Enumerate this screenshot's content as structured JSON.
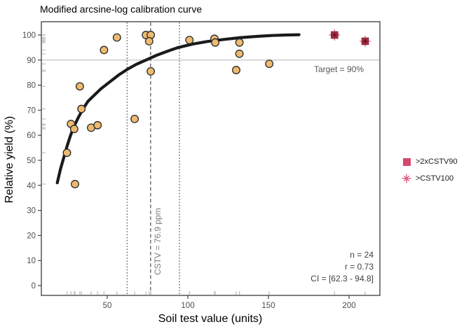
{
  "chart_data": {
    "type": "scatter",
    "title": "Modified arcsine-log calibration curve",
    "xlabel": "Soil test value (units)",
    "ylabel": "Relative yield (%)",
    "xlim": [
      9,
      219
    ],
    "ylim": [
      -4,
      105.3
    ],
    "x_ticks": [
      50,
      100,
      150,
      200
    ],
    "y_ticks": [
      0,
      10,
      20,
      30,
      40,
      50,
      60,
      70,
      80,
      90,
      100
    ],
    "grid": false,
    "legend_position": "right-outside",
    "series": [
      {
        "name": "soil-test-observations",
        "marker": "circle",
        "fill": "#EDBA6F",
        "stroke": "#2a2a2a",
        "points": [
          [
            25,
            53
          ],
          [
            27.5,
            64.5
          ],
          [
            29.5,
            62.5
          ],
          [
            30,
            40.5
          ],
          [
            33,
            79.5
          ],
          [
            34,
            70.5
          ],
          [
            40,
            63
          ],
          [
            44,
            64
          ],
          [
            48,
            94
          ],
          [
            56,
            99
          ],
          [
            67,
            66.5
          ],
          [
            74,
            100
          ],
          [
            77,
            100
          ],
          [
            76,
            97.5
          ],
          [
            77,
            85.5
          ],
          [
            101,
            98
          ],
          [
            116.5,
            98.5
          ],
          [
            117,
            97
          ],
          [
            132,
            97
          ],
          [
            132,
            92.5
          ],
          [
            130,
            86
          ],
          [
            150.5,
            88.5
          ]
        ]
      },
      {
        "name": "flagged-observations",
        "marker": "square-asterisk",
        "fill": "#C4374E",
        "stroke": "#7E1F33",
        "spoke_color": "#E8708E",
        "inner_color": "#6E1527",
        "points": [
          [
            191,
            100
          ],
          [
            210,
            97.5
          ]
        ]
      }
    ],
    "curve": {
      "name": "calibration-curve",
      "color": "#1a1a1a",
      "width": 4.2,
      "points": [
        [
          19,
          41
        ],
        [
          21,
          46.5
        ],
        [
          23,
          51
        ],
        [
          25,
          55.5
        ],
        [
          27,
          59.5
        ],
        [
          29,
          63
        ],
        [
          32,
          67
        ],
        [
          35,
          70.5
        ],
        [
          38,
          73.5
        ],
        [
          42,
          76
        ],
        [
          46,
          78.5
        ],
        [
          51,
          81
        ],
        [
          57,
          84
        ],
        [
          63,
          86.5
        ],
        [
          68,
          88.3
        ],
        [
          74,
          90
        ],
        [
          81,
          92
        ],
        [
          88,
          93.7
        ],
        [
          94,
          95
        ],
        [
          103,
          96.4
        ],
        [
          112,
          97.4
        ],
        [
          122,
          98.2
        ],
        [
          132,
          98.9
        ],
        [
          142,
          99.4
        ],
        [
          152,
          99.8
        ],
        [
          161,
          100
        ],
        [
          169,
          100.1
        ]
      ]
    },
    "reference_lines": {
      "target": {
        "y": 90,
        "label": "Target = 90%",
        "style": "solid",
        "color": "#bdbdbd"
      },
      "cstv": {
        "x": 76.9,
        "label": "CSTV = 76.9 ppm",
        "style": "dashed",
        "color": "#3a3a3a"
      },
      "ci_lower": {
        "x": 62.3,
        "style": "dotted",
        "color": "#3a3a3a"
      },
      "ci_upper": {
        "x": 94.8,
        "style": "dotted",
        "color": "#3a3a3a"
      }
    },
    "rug": {
      "color": "#c6c6c6"
    },
    "stats": {
      "n": "n = 24",
      "r": "r = 0.73",
      "ci": "CI = [62.3 - 94.8]"
    },
    "legend": [
      {
        "label": ">2xCSTV90",
        "marker": "square",
        "color": "#D6476B"
      },
      {
        "label": ">CSTV100",
        "marker": "asterisk",
        "color": "#E0557B"
      }
    ],
    "tick_label_color": "#4d4d4d",
    "panel_border_color": "#2b2b2b"
  }
}
